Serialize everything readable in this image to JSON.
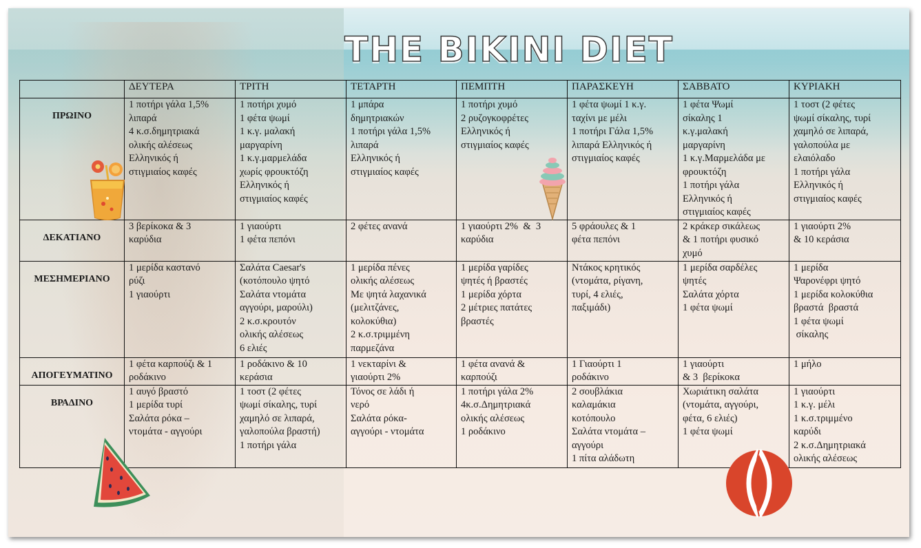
{
  "title": "THE BIKINI DIET",
  "days": [
    "ΔΕΥΤΕΡΑ",
    "ΤΡΙΤΗ",
    "ΤΕΤΑΡΤΗ",
    "ΠΕΜΠΤΗ",
    "ΠΑΡΑΣΚΕΥΗ",
    "ΣΑΒΒΑΤΟ",
    "ΚΥΡΙΑΚΗ"
  ],
  "meals": [
    {
      "name": "ΠΡΩΙΝΟ",
      "cells": [
        [
          "1 ποτήρι γάλα 1,5%",
          "λιπαρά",
          "4 κ.σ.δημητριακά",
          "ολικής αλέσεως",
          "Ελληνικός ή",
          "στιγμιαίος καφές"
        ],
        [
          "1 ποτήρι χυμό",
          "1 φέτα ψωμί",
          "1 κ.γ. μαλακή",
          "μαργαρίνη",
          "1 κ.γ.μαρμελάδα",
          "χωρίς φρουκτόζη",
          "Ελληνικός ή",
          "στιγμιαίος καφές"
        ],
        [
          "1 μπάρα",
          "δημητριακών",
          "1 ποτήρι γάλα 1,5%",
          "λιπαρά",
          "Ελληνικός ή",
          "στιγμιαίος καφές"
        ],
        [
          "1 ποτήρι χυμό",
          "2 ρυζογκοφρέτες",
          "Ελληνικός ή",
          "στιγμιαίος καφές"
        ],
        [
          "1 φέτα ψωμί 1 κ.γ.",
          "ταχίνι με μέλι",
          "1 ποτήρι Γάλα 1,5%",
          "λιπαρά Ελληνικός ή",
          "στιγμιαίος καφές"
        ],
        [
          "1 φέτα Ψωμί",
          "σίκαλης 1",
          "κ.γ.μαλακή",
          "μαργαρίνη",
          "1 κ.γ.Μαρμελάδα με",
          "φρουκτόζη",
          "1 ποτήρι γάλα",
          "Ελληνικός ή",
          "στιγμιαίος καφές"
        ],
        [
          "1 τοστ (2 φέτες",
          "ψωμί σίκαλης, τυρί",
          "χαμηλό σε λιπαρά,",
          "γαλοπούλα με",
          "ελαιόλαδο",
          "1 ποτήρι γάλα",
          "Ελληνικός ή",
          "στιγμιαίος καφές"
        ]
      ]
    },
    {
      "name": "ΔΕΚΑΤΙΑΝΟ",
      "cells": [
        [
          "3 βερίκοκα & 3",
          "καρύδια"
        ],
        [
          "1 γιαούρτι",
          "1 φέτα πεπόνι"
        ],
        [
          "2 φέτες ανανά"
        ],
        [
          "1 γιαούρτι 2%  &  3",
          "καρύδια"
        ],
        [
          "5 φράουλες & 1",
          "φέτα πεπόνι"
        ],
        [
          "2 κράκερ σικάλεως",
          "& 1 ποτήρι φυσικό",
          "χυμό"
        ],
        [
          "1 γιαούρτι 2%",
          "& 10 κεράσια"
        ]
      ]
    },
    {
      "name": "ΜΕΣΗΜΕΡΙΑΝΟ",
      "cells": [
        [
          "1 μερίδα καστανό",
          "ρύζι",
          "1 γιαούρτι"
        ],
        [
          "Σαλάτα Caesar's",
          "(κοτόπουλο ψητό",
          "Σαλάτα ντομάτα",
          "αγγούρι, μαρούλι)",
          "2 κ.σ.κρουτόν",
          "ολικής αλέσεως",
          "6 ελιές"
        ],
        [
          "1 μερίδα πένες",
          "ολικής αλέσεως",
          "Με ψητά λαχανικά",
          "(μελιτζάνες,",
          "κολοκύθια)",
          "2 κ.σ.τριμμένη",
          "παρμεζάνα"
        ],
        [
          "1 μερίδα γαρίδες",
          "ψητές ή βραστές",
          "1 μερίδα χόρτα",
          "2 μέτριες πατάτες",
          "βραστές"
        ],
        [
          "Ντάκος κρητικός",
          "(ντομάτα, ρίγανη,",
          "τυρί, 4 ελιές,",
          "παξιμάδι)"
        ],
        [
          "1 μερίδα σαρδέλες",
          "ψητές",
          "Σαλάτα χόρτα",
          "1 φέτα ψωμί"
        ],
        [
          "1 μερίδα",
          "Ψαρονέφρι ψητό",
          "1 μερίδα κολοκύθια",
          "βραστά  βραστά",
          "1 φέτα ψωμί",
          " σίκαλης"
        ]
      ]
    },
    {
      "name": "ΑΠΟΓΕΥΜΑΤΙΝΟ",
      "cells": [
        [
          "1 φέτα καρπούζι & 1",
          "ροδάκινο"
        ],
        [
          "1 ροδάκινο & 10",
          "κεράσια"
        ],
        [
          "1 νεκταρίνι &",
          "γιαούρτι 2%"
        ],
        [
          "1 φέτα ανανά &",
          "καρπούζι"
        ],
        [
          "1 Γιαούρτι 1",
          "ροδάκινο"
        ],
        [
          "1 γιαούρτι",
          "& 3  βερίκοκα"
        ],
        [
          "1 μήλο"
        ]
      ]
    },
    {
      "name": "ΒΡΑΔΙΝΟ",
      "cells": [
        [
          "1 αυγό βραστό",
          "1 μερίδα τυρί",
          "Σαλάτα ρόκα –",
          "ντομάτα - αγγούρι"
        ],
        [
          "1 τοστ (2 φέτες",
          "ψωμί σίκαλης, τυρί",
          "χαμηλό σε λιπαρά,",
          "γαλοπούλα βραστή)",
          "1 ποτήρι γάλα"
        ],
        [
          "Τόνος σε λάδι ή",
          "νερό",
          "Σαλάτα ρόκα-",
          "αγγούρι - ντομάτα"
        ],
        [
          "1 ποτήρι γάλα 2%",
          "4κ.σ.Δημητριακά",
          "ολικής αλέσεως",
          "1 ροδάκινο"
        ],
        [
          "2 σουβλάκια",
          "καλαμάκια",
          "κοτόπουλο",
          "Σαλάτα ντομάτα –",
          "αγγούρι",
          "1 πίτα αλάδωτη"
        ],
        [
          "Χωριάτικη σαλάτα",
          "(ντομάτα, αγγούρι,",
          "φέτα, 6 ελιές)",
          "1 φέτα ψωμί"
        ],
        [
          "1 γιαούρτι",
          "1 κ.γ. μέλι",
          "1 κ.σ.τριμμένο",
          "καρύδι",
          "2 κ.σ.Δημητριακά",
          "ολικής αλέσεως"
        ]
      ]
    }
  ],
  "decorations": [
    "cocktail-icon",
    "ice-cream-icon",
    "watermelon-icon",
    "beach-ball-icon"
  ],
  "colors": {
    "table_border": "#111111",
    "text": "#1a1a1a",
    "accent_red": "#d9452b"
  }
}
